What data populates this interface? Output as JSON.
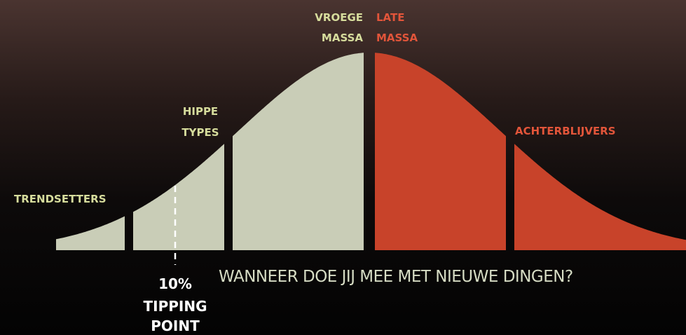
{
  "segments": {
    "trendsetters": [
      "TRENDSETTERS"
    ],
    "hippe_types": [
      "HIPPE",
      "TYPES"
    ],
    "vroege_massa": [
      "VROEGE",
      "MASSA"
    ],
    "late_massa": [
      "LATE",
      "MASSA"
    ],
    "achterblijvers": [
      "ACHTERBLIJVERS"
    ]
  },
  "tipping_point": [
    "10%",
    "TIPPING",
    "POINT"
  ],
  "question": "WANNEER DOE JIJ MEE MET NIEUWE DINGEN?"
}
